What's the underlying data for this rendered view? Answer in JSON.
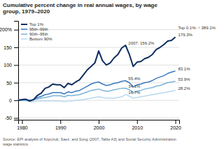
{
  "chart_data": {
    "type": "line",
    "title": "Cumulative percent change in real annual wages, by wage\ngroup, 1979–2020",
    "source": "Source: EPI analysis of Kopczuk, Saez, and Song (2007, Table A3) and Social Security Administration\nwage statistics.",
    "x": [
      1979,
      1980,
      1981,
      1982,
      1983,
      1984,
      1985,
      1986,
      1987,
      1988,
      1989,
      1990,
      1991,
      1992,
      1993,
      1994,
      1995,
      1996,
      1997,
      1998,
      1999,
      2000,
      2001,
      2002,
      2003,
      2004,
      2005,
      2006,
      2007,
      2008,
      2009,
      2010,
      2011,
      2012,
      2013,
      2014,
      2015,
      2016,
      2017,
      2018,
      2019,
      2020
    ],
    "series": [
      {
        "name": "Top 1%",
        "color": "#0d2d5e",
        "values": [
          0,
          2,
          3,
          -2,
          2,
          14,
          20,
          34,
          38,
          46,
          44,
          44,
          36,
          48,
          44,
          52,
          58,
          72,
          86,
          96,
          106,
          140,
          112,
          100,
          106,
          120,
          130,
          148,
          156,
          130,
          96,
          108,
          110,
          118,
          122,
          130,
          144,
          150,
          158,
          168,
          170,
          179.3
        ]
      },
      {
        "name": "95th–99th",
        "color": "#3a7abf",
        "values": [
          0,
          1,
          2,
          0,
          2,
          8,
          11,
          16,
          18,
          22,
          22,
          22,
          18,
          24,
          22,
          26,
          28,
          34,
          40,
          46,
          50,
          52,
          46,
          42,
          44,
          48,
          50,
          54,
          55.4,
          50,
          38,
          44,
          46,
          50,
          52,
          56,
          62,
          66,
          70,
          76,
          80,
          83.1
        ]
      },
      {
        "name": "90th–95th",
        "color": "#7ab3d9",
        "values": [
          0,
          0,
          1,
          0,
          1,
          4,
          6,
          8,
          10,
          13,
          13,
          13,
          10,
          14,
          13,
          15,
          16,
          20,
          24,
          28,
          30,
          32,
          28,
          26,
          27,
          30,
          32,
          34,
          34.1,
          30,
          22,
          26,
          28,
          32,
          34,
          36,
          40,
          42,
          46,
          50,
          52,
          53.9
        ]
      },
      {
        "name": "Bottom 90%",
        "color": "#b8d9ee",
        "values": [
          0,
          -1,
          -2,
          -4,
          -4,
          -2,
          -2,
          -2,
          -2,
          -2,
          -2,
          -2,
          -4,
          -2,
          -2,
          0,
          0,
          2,
          4,
          6,
          8,
          10,
          8,
          6,
          6,
          6,
          8,
          10,
          16.7,
          12,
          6,
          8,
          10,
          12,
          14,
          16,
          18,
          20,
          22,
          24,
          26,
          28.2
        ]
      }
    ],
    "xlim": [
      1979,
      2021
    ],
    "xticks": [
      1980,
      1990,
      2000,
      2010,
      2020
    ],
    "ylim": [
      -55,
      225
    ],
    "yticks": [
      -50,
      0,
      50,
      100,
      150,
      {
        "value": 200,
        "label": "200%"
      }
    ],
    "grid": true,
    "legend": "upper left",
    "annotations": [
      {
        "text": "2007: 156.2%",
        "x": 2007,
        "y": 156.2
      },
      {
        "text": "55.4%",
        "x": 2007,
        "y": 55.4
      },
      {
        "text": "34.1%",
        "x": 2007,
        "y": 34.1
      },
      {
        "text": "16.7%",
        "x": 2007,
        "y": 16.7
      },
      {
        "text": "Top 0.1%: ↑ 389.1%",
        "x": 2020,
        "y": 200
      },
      {
        "text": "179.3%",
        "x": 2020,
        "y": 179.3
      },
      {
        "text": "83.1%",
        "x": 2020,
        "y": 83.1
      },
      {
        "text": "53.9%",
        "x": 2020,
        "y": 53.9
      },
      {
        "text": "28.2%",
        "x": 2020,
        "y": 28.2
      }
    ]
  }
}
